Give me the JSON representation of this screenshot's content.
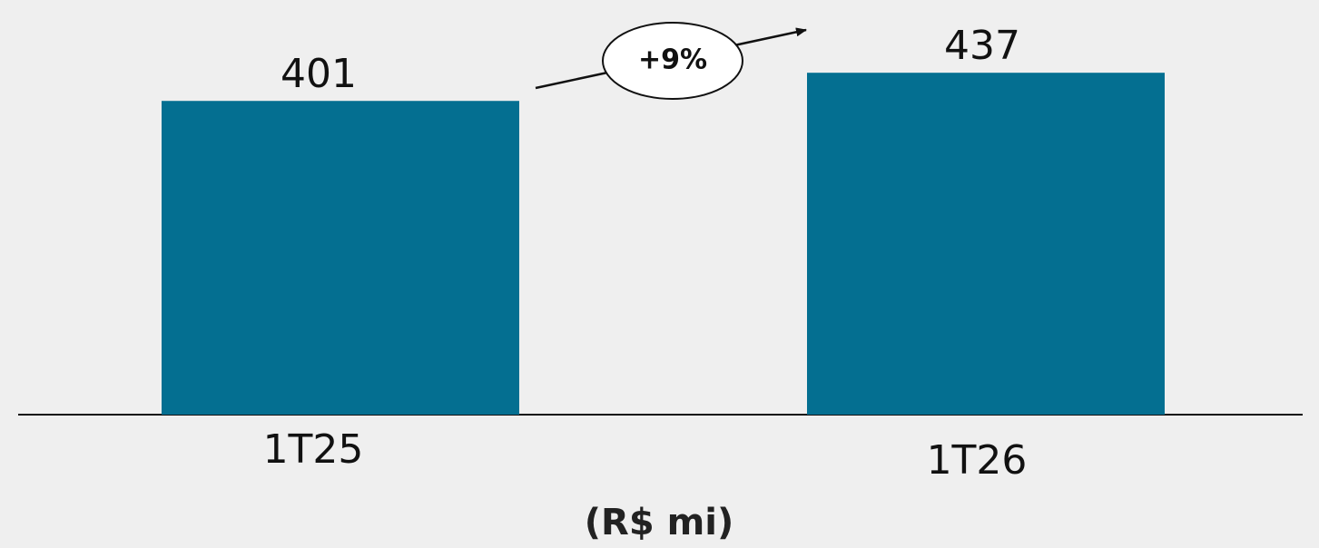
{
  "chart_data": {
    "type": "bar",
    "categories": [
      "1T25",
      "1T26"
    ],
    "values": [
      401,
      437
    ],
    "color": "#046f91",
    "ylim": [
      0,
      530
    ],
    "annotation": "+9%",
    "unit_label": "(R$ mi)"
  }
}
